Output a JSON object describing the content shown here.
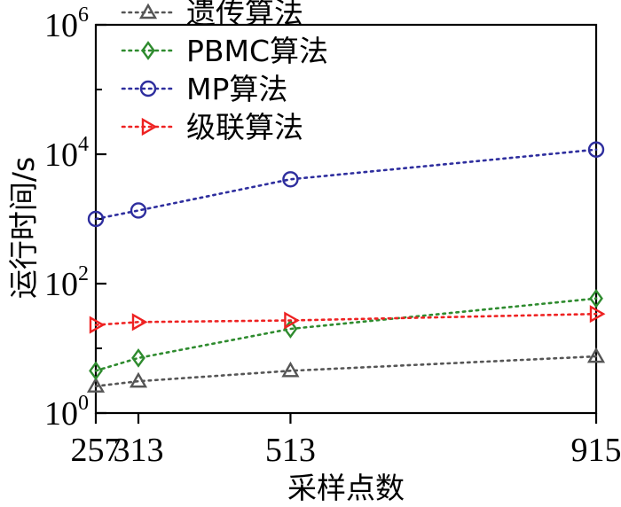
{
  "chart_data": {
    "type": "line",
    "xlabel": "采样点数",
    "ylabel": "运行时间/s",
    "y_scale": "log",
    "ylim": [
      1,
      1000000
    ],
    "xlim": [
      257,
      915
    ],
    "x_ticks": [
      257,
      313,
      513,
      915
    ],
    "y_ticks": [
      {
        "value": 1,
        "base": "10",
        "exp": "0"
      },
      {
        "value": 100,
        "base": "10",
        "exp": "2"
      },
      {
        "value": 10000,
        "base": "10",
        "exp": "4"
      },
      {
        "value": 1000000,
        "base": "10",
        "exp": "6"
      }
    ],
    "grid": false,
    "legend_position": "top-left",
    "series": [
      {
        "name": "遗传算法",
        "marker": "triangle-up",
        "color": "#555555",
        "x": [
          257,
          313,
          513,
          915
        ],
        "values": [
          2.6,
          3.1,
          4.5,
          7.5
        ]
      },
      {
        "name": "PBMC算法",
        "marker": "diamond",
        "color": "#2e8b2e",
        "x": [
          257,
          313,
          513,
          915
        ],
        "values": [
          4.5,
          7.1,
          20,
          59
        ]
      },
      {
        "name": "MP算法",
        "marker": "circle",
        "color": "#2e2e9e",
        "x": [
          257,
          313,
          513,
          915
        ],
        "values": [
          1000,
          1350,
          4100,
          11800
        ]
      },
      {
        "name": "级联算法",
        "marker": "triangle-right",
        "color": "#ee2222",
        "x": [
          257,
          313,
          513,
          915
        ],
        "values": [
          23,
          25.5,
          27,
          34
        ]
      }
    ]
  }
}
